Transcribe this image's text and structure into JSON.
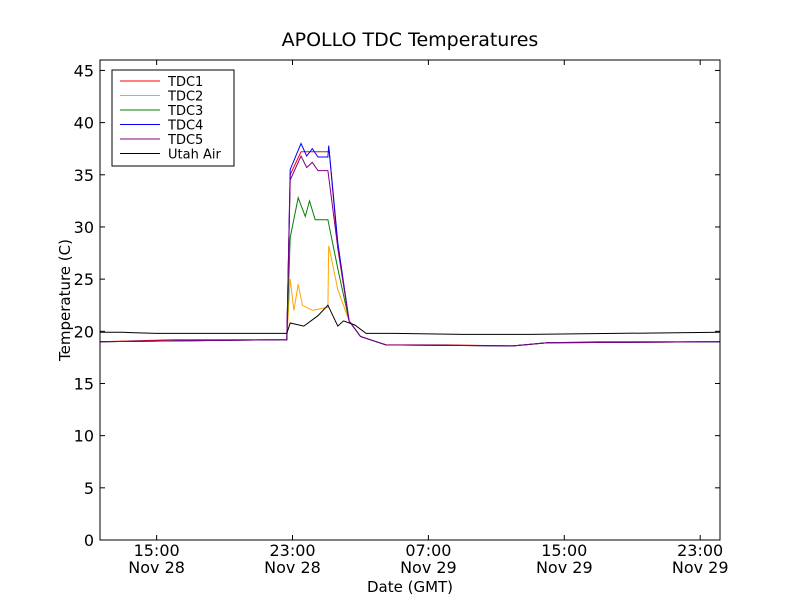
{
  "chart_data": {
    "type": "line",
    "title": "APOLLO TDC Temperatures",
    "xlabel": "Date (GMT)",
    "ylabel": "Temperature (C)",
    "xlim": [
      "2014-11-28 11:40",
      "2014-11-30 00:10"
    ],
    "ylim": [
      0,
      46
    ],
    "yticks": [
      0,
      5,
      10,
      15,
      20,
      25,
      30,
      35,
      40,
      45
    ],
    "xticks": [
      {
        "t": "2014-11-28 15:00",
        "line1": "15:00",
        "line2": "Nov 28"
      },
      {
        "t": "2014-11-28 23:00",
        "line1": "23:00",
        "line2": "Nov 28"
      },
      {
        "t": "2014-11-29 07:00",
        "line1": "07:00",
        "line2": "Nov 29"
      },
      {
        "t": "2014-11-29 15:00",
        "line1": "15:00",
        "line2": "Nov 29"
      },
      {
        "t": "2014-11-29 23:00",
        "line1": "23:00",
        "line2": "Nov 29"
      }
    ],
    "grid": false,
    "legend_position": "top-left",
    "series": [
      {
        "name": "TDC1",
        "color": "#ff0000",
        "points": [
          [
            "2014-11-28 11:40",
            19.0
          ],
          [
            "2014-11-28 16:00",
            19.2
          ],
          [
            "2014-11-28 22:40",
            19.2
          ],
          [
            "2014-11-28 22:52",
            35.0
          ],
          [
            "2014-11-28 23:30",
            37.2
          ],
          [
            "2014-11-29 01:10",
            37.2
          ],
          [
            "2014-11-29 01:40",
            28.0
          ],
          [
            "2014-11-29 02:20",
            21.0
          ],
          [
            "2014-11-29 03:00",
            19.5
          ],
          [
            "2014-11-29 04:30",
            18.7
          ],
          [
            "2014-11-29 08:00",
            18.7
          ],
          [
            "2014-11-29 12:00",
            18.6
          ],
          [
            "2014-11-29 14:00",
            18.9
          ],
          [
            "2014-11-29 17:00",
            19.0
          ],
          [
            "2014-11-30 00:10",
            19.0
          ]
        ]
      },
      {
        "name": "TDC2",
        "color": "#ffa500",
        "points": [
          [
            "2014-11-28 11:40",
            19.0
          ],
          [
            "2014-11-28 22:40",
            19.2
          ],
          [
            "2014-11-28 22:52",
            25.0
          ],
          [
            "2014-11-28 23:05",
            22.0
          ],
          [
            "2014-11-28 23:20",
            24.5
          ],
          [
            "2014-11-28 23:35",
            22.5
          ],
          [
            "2014-11-29 00:10",
            22.0
          ],
          [
            "2014-11-29 01:05",
            22.3
          ],
          [
            "2014-11-29 01:08",
            28.2
          ],
          [
            "2014-11-29 01:40",
            24.0
          ],
          [
            "2014-11-29 02:20",
            21.0
          ],
          [
            "2014-11-29 03:00",
            19.5
          ],
          [
            "2014-11-29 04:30",
            18.7
          ],
          [
            "2014-11-29 12:00",
            18.6
          ],
          [
            "2014-11-29 14:00",
            18.9
          ],
          [
            "2014-11-30 00:10",
            19.0
          ]
        ]
      },
      {
        "name": "TDC3",
        "color": "#008000",
        "points": [
          [
            "2014-11-28 11:40",
            19.0
          ],
          [
            "2014-11-28 22:40",
            19.2
          ],
          [
            "2014-11-28 22:52",
            29.0
          ],
          [
            "2014-11-28 23:20",
            32.8
          ],
          [
            "2014-11-28 23:45",
            31.0
          ],
          [
            "2014-11-29 00:00",
            32.5
          ],
          [
            "2014-11-29 00:20",
            30.7
          ],
          [
            "2014-11-29 01:05",
            30.7
          ],
          [
            "2014-11-29 01:40",
            26.0
          ],
          [
            "2014-11-29 02:20",
            21.0
          ],
          [
            "2014-11-29 03:00",
            19.5
          ],
          [
            "2014-11-29 04:30",
            18.7
          ],
          [
            "2014-11-29 12:00",
            18.6
          ],
          [
            "2014-11-29 14:00",
            18.9
          ],
          [
            "2014-11-30 00:10",
            19.0
          ]
        ]
      },
      {
        "name": "TDC4",
        "color": "#0000ff",
        "points": [
          [
            "2014-11-28 11:40",
            19.0
          ],
          [
            "2014-11-28 22:40",
            19.2
          ],
          [
            "2014-11-28 22:52",
            35.5
          ],
          [
            "2014-11-28 23:30",
            38.0
          ],
          [
            "2014-11-28 23:50",
            36.8
          ],
          [
            "2014-11-29 00:10",
            37.5
          ],
          [
            "2014-11-29 00:30",
            36.7
          ],
          [
            "2014-11-29 01:05",
            36.7
          ],
          [
            "2014-11-29 01:08",
            37.8
          ],
          [
            "2014-11-29 01:40",
            28.5
          ],
          [
            "2014-11-29 02:20",
            21.0
          ],
          [
            "2014-11-29 03:00",
            19.5
          ],
          [
            "2014-11-29 04:30",
            18.7
          ],
          [
            "2014-11-29 12:00",
            18.6
          ],
          [
            "2014-11-29 14:00",
            18.9
          ],
          [
            "2014-11-30 00:10",
            19.0
          ]
        ]
      },
      {
        "name": "TDC5",
        "color": "#800080",
        "points": [
          [
            "2014-11-28 11:40",
            19.0
          ],
          [
            "2014-11-28 22:40",
            19.2
          ],
          [
            "2014-11-28 22:52",
            34.5
          ],
          [
            "2014-11-28 23:30",
            36.8
          ],
          [
            "2014-11-28 23:50",
            35.7
          ],
          [
            "2014-11-29 00:10",
            36.2
          ],
          [
            "2014-11-29 00:30",
            35.4
          ],
          [
            "2014-11-29 01:05",
            35.4
          ],
          [
            "2014-11-29 01:40",
            28.0
          ],
          [
            "2014-11-29 02:20",
            21.0
          ],
          [
            "2014-11-29 03:00",
            19.5
          ],
          [
            "2014-11-29 04:30",
            18.7
          ],
          [
            "2014-11-29 12:00",
            18.6
          ],
          [
            "2014-11-29 14:00",
            18.9
          ],
          [
            "2014-11-30 00:10",
            19.0
          ]
        ]
      },
      {
        "name": "Utah Air",
        "color": "#000000",
        "points": [
          [
            "2014-11-28 11:40",
            19.9
          ],
          [
            "2014-11-28 13:00",
            19.9
          ],
          [
            "2014-11-28 15:00",
            19.8
          ],
          [
            "2014-11-28 18:00",
            19.8
          ],
          [
            "2014-11-28 21:00",
            19.8
          ],
          [
            "2014-11-28 22:40",
            19.8
          ],
          [
            "2014-11-28 22:52",
            20.8
          ],
          [
            "2014-11-28 23:40",
            20.5
          ],
          [
            "2014-11-29 00:30",
            21.5
          ],
          [
            "2014-11-29 01:05",
            22.5
          ],
          [
            "2014-11-29 01:40",
            20.5
          ],
          [
            "2014-11-29 02:00",
            21.0
          ],
          [
            "2014-11-29 02:40",
            20.6
          ],
          [
            "2014-11-29 03:20",
            19.8
          ],
          [
            "2014-11-29 05:00",
            19.8
          ],
          [
            "2014-11-29 09:00",
            19.7
          ],
          [
            "2014-11-29 13:00",
            19.7
          ],
          [
            "2014-11-29 18:00",
            19.8
          ],
          [
            "2014-11-30 00:10",
            19.9
          ]
        ]
      }
    ]
  }
}
